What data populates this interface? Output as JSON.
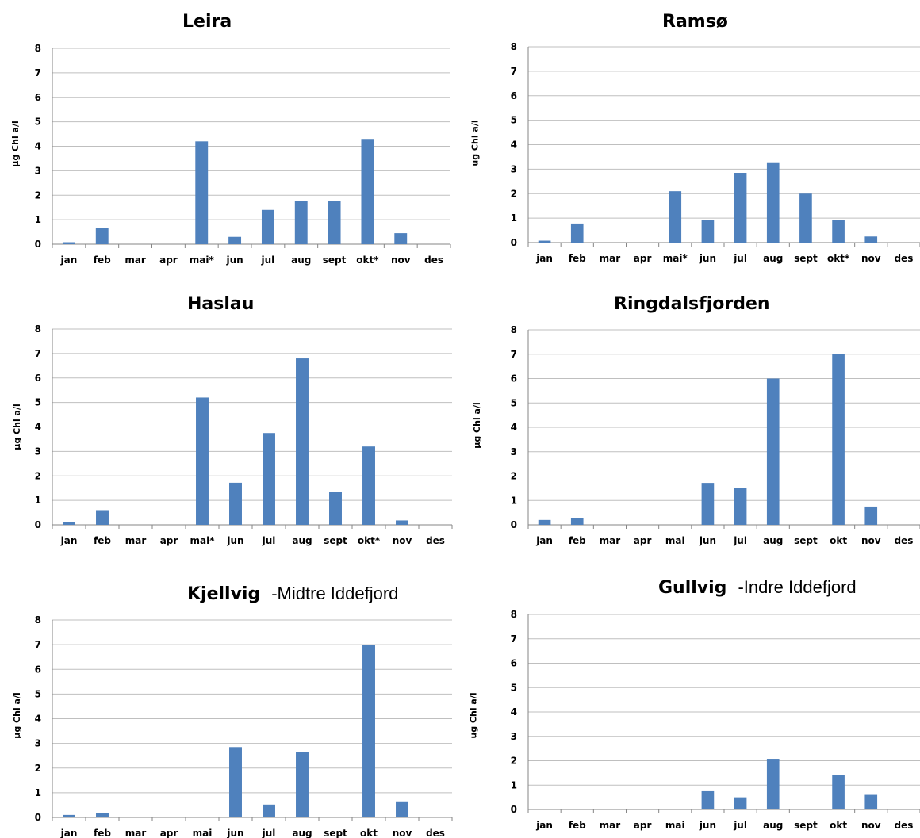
{
  "charts_meta": {
    "bar_color": "#4f81bd",
    "grid_color": "#bfbfbf",
    "axis_color": "#868686"
  },
  "chart_data": [
    {
      "type": "bar",
      "title": "Leira",
      "subtitle": "",
      "ylabel": "µg Chl a/l",
      "ylim": [
        0,
        8
      ],
      "yticks": [
        0,
        1,
        2,
        3,
        4,
        5,
        6,
        7,
        8
      ],
      "grid": true,
      "categories": [
        "jan",
        "feb",
        "mar",
        "apr",
        "mai*",
        "jun",
        "jul",
        "aug",
        "sept",
        "okt*",
        "nov",
        "des"
      ],
      "values": [
        0.08,
        0.65,
        null,
        null,
        4.2,
        0.3,
        1.4,
        1.75,
        1.75,
        4.3,
        0.45,
        null
      ]
    },
    {
      "type": "bar",
      "title": "Ramsø",
      "subtitle": "",
      "ylabel": "ug Chl a/l",
      "ylim": [
        0,
        8
      ],
      "yticks": [
        0,
        1,
        2,
        3,
        4,
        5,
        6,
        7,
        8
      ],
      "grid": true,
      "categories": [
        "jan",
        "feb",
        "mar",
        "apr",
        "mai*",
        "jun",
        "jul",
        "aug",
        "sept",
        "okt*",
        "nov",
        "des"
      ],
      "values": [
        0.08,
        0.78,
        null,
        null,
        2.1,
        0.92,
        2.85,
        3.28,
        2.0,
        0.92,
        0.25,
        null
      ]
    },
    {
      "type": "bar",
      "title": "Haslau",
      "subtitle": "",
      "ylabel": "µg Chl a/l",
      "ylim": [
        0,
        8
      ],
      "yticks": [
        0,
        1,
        2,
        3,
        4,
        5,
        6,
        7,
        8
      ],
      "grid": true,
      "categories": [
        "jan",
        "feb",
        "mar",
        "apr",
        "mai*",
        "jun",
        "jul",
        "aug",
        "sept",
        "okt*",
        "nov",
        "des"
      ],
      "values": [
        0.1,
        0.6,
        null,
        null,
        5.2,
        1.72,
        3.75,
        6.8,
        1.35,
        3.2,
        0.18,
        null
      ]
    },
    {
      "type": "bar",
      "title": "Ringdalsfjorden",
      "subtitle": "",
      "ylabel": "µg Chl a/l",
      "ylim": [
        0,
        8
      ],
      "yticks": [
        0,
        1,
        2,
        3,
        4,
        5,
        6,
        7,
        8
      ],
      "grid": true,
      "categories": [
        "jan",
        "feb",
        "mar",
        "apr",
        "mai",
        "jun",
        "jul",
        "aug",
        "sept",
        "okt",
        "nov",
        "des"
      ],
      "values": [
        0.2,
        0.28,
        null,
        null,
        null,
        1.72,
        1.5,
        6.0,
        null,
        7.0,
        0.75,
        null
      ]
    },
    {
      "type": "bar",
      "title": "Kjellvig",
      "subtitle": "-Midtre Iddefjord",
      "ylabel": "µg Chl a/l",
      "ylim": [
        0,
        8
      ],
      "yticks": [
        0,
        1,
        2,
        3,
        4,
        5,
        6,
        7,
        8
      ],
      "grid": true,
      "categories": [
        "jan",
        "feb",
        "mar",
        "apr",
        "mai",
        "jun",
        "jul",
        "aug",
        "sept",
        "okt",
        "nov",
        "des"
      ],
      "values": [
        0.1,
        0.18,
        null,
        null,
        null,
        2.85,
        0.52,
        2.65,
        null,
        7.0,
        0.65,
        null
      ]
    },
    {
      "type": "bar",
      "title": "Gullvig",
      "subtitle": "-Indre Iddefjord",
      "ylabel": "ug Chl a/l",
      "ylim": [
        0,
        8
      ],
      "yticks": [
        0,
        1,
        2,
        3,
        4,
        5,
        6,
        7,
        8
      ],
      "grid": true,
      "categories": [
        "jan",
        "feb",
        "mar",
        "apr",
        "mai",
        "jun",
        "jul",
        "aug",
        "sept",
        "okt",
        "nov",
        "des"
      ],
      "values": [
        null,
        null,
        null,
        null,
        null,
        0.75,
        0.5,
        2.08,
        null,
        1.42,
        0.6,
        null
      ]
    }
  ]
}
